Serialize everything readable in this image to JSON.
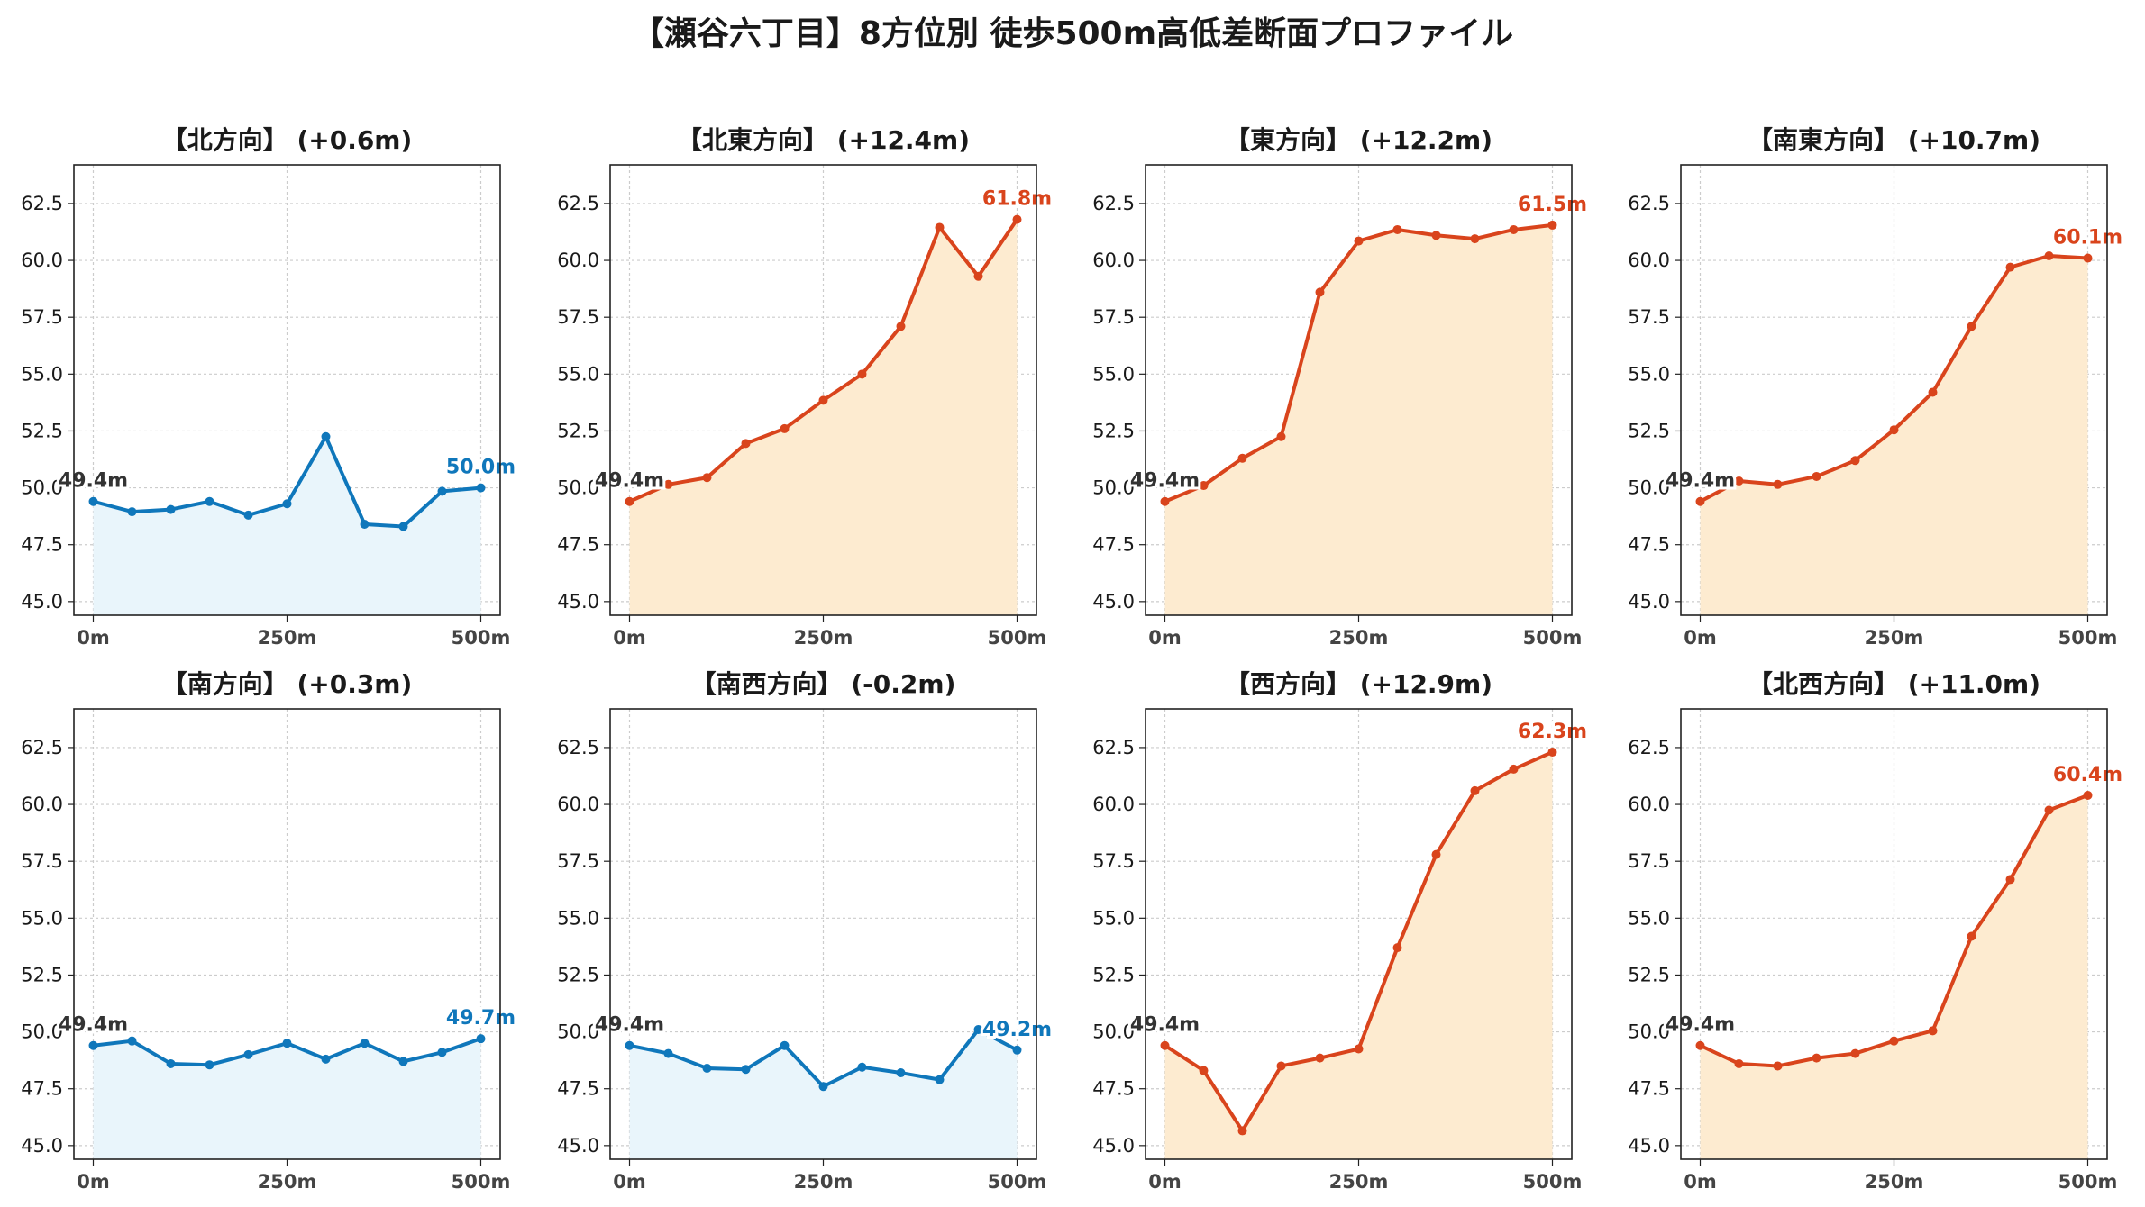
{
  "title": "【瀬谷六丁目】8方位別 徒歩500m高低差断面プロファイル",
  "colors": {
    "up_line": "#d9441c",
    "up_fill": "#fdebd0",
    "flat_line": "#0f77bb",
    "flat_fill": "#e9f5fb",
    "start_label": "#333333",
    "grid": "#cccccc"
  },
  "chart_data": [
    {
      "type": "area",
      "title": "【北方向】 (+0.6m)",
      "trend": "flat",
      "x": [
        0,
        50,
        100,
        150,
        200,
        250,
        300,
        350,
        400,
        450,
        500
      ],
      "values": [
        49.4,
        48.95,
        49.05,
        49.4,
        48.8,
        49.3,
        52.25,
        48.4,
        48.3,
        49.85,
        50.0
      ],
      "start_label": "49.4m",
      "end_label": "50.0m",
      "xticks": [
        "0m",
        "250m",
        "500m"
      ],
      "yticks": [
        "45.0",
        "47.5",
        "50.0",
        "52.5",
        "55.0",
        "57.5",
        "60.0",
        "62.5"
      ],
      "ylim": [
        44.4,
        64.2
      ],
      "xlim": [
        -25,
        525
      ],
      "grid": true
    },
    {
      "type": "area",
      "title": "【北東方向】 (+12.4m)",
      "trend": "up",
      "x": [
        0,
        50,
        100,
        150,
        200,
        250,
        300,
        350,
        400,
        450,
        500
      ],
      "values": [
        49.4,
        50.15,
        50.45,
        51.95,
        52.6,
        53.85,
        55.0,
        57.1,
        61.45,
        59.3,
        61.8
      ],
      "start_label": "49.4m",
      "end_label": "61.8m",
      "xticks": [
        "0m",
        "250m",
        "500m"
      ],
      "yticks": [
        "45.0",
        "47.5",
        "50.0",
        "52.5",
        "55.0",
        "57.5",
        "60.0",
        "62.5"
      ],
      "ylim": [
        44.4,
        64.2
      ],
      "xlim": [
        -25,
        525
      ],
      "grid": true
    },
    {
      "type": "area",
      "title": "【東方向】 (+12.2m)",
      "trend": "up",
      "x": [
        0,
        50,
        100,
        150,
        200,
        250,
        300,
        350,
        400,
        450,
        500
      ],
      "values": [
        49.4,
        50.1,
        51.3,
        52.25,
        58.6,
        60.85,
        61.35,
        61.1,
        60.95,
        61.35,
        61.55
      ],
      "start_label": "49.4m",
      "end_label": "61.5m",
      "xticks": [
        "0m",
        "250m",
        "500m"
      ],
      "yticks": [
        "45.0",
        "47.5",
        "50.0",
        "52.5",
        "55.0",
        "57.5",
        "60.0",
        "62.5"
      ],
      "ylim": [
        44.4,
        64.2
      ],
      "xlim": [
        -25,
        525
      ],
      "grid": true
    },
    {
      "type": "area",
      "title": "【南東方向】 (+10.7m)",
      "trend": "up",
      "x": [
        0,
        50,
        100,
        150,
        200,
        250,
        300,
        350,
        400,
        450,
        500
      ],
      "values": [
        49.4,
        50.3,
        50.15,
        50.5,
        51.2,
        52.55,
        54.2,
        57.1,
        59.7,
        60.2,
        60.1
      ],
      "start_label": "49.4m",
      "end_label": "60.1m",
      "xticks": [
        "0m",
        "250m",
        "500m"
      ],
      "yticks": [
        "45.0",
        "47.5",
        "50.0",
        "52.5",
        "55.0",
        "57.5",
        "60.0",
        "62.5"
      ],
      "ylim": [
        44.4,
        64.2
      ],
      "xlim": [
        -25,
        525
      ],
      "grid": true
    },
    {
      "type": "area",
      "title": "【南方向】 (+0.3m)",
      "trend": "flat",
      "x": [
        0,
        50,
        100,
        150,
        200,
        250,
        300,
        350,
        400,
        450,
        500
      ],
      "values": [
        49.4,
        49.6,
        48.6,
        48.55,
        49.0,
        49.5,
        48.8,
        49.5,
        48.7,
        49.1,
        49.7
      ],
      "start_label": "49.4m",
      "end_label": "49.7m",
      "xticks": [
        "0m",
        "250m",
        "500m"
      ],
      "yticks": [
        "45.0",
        "47.5",
        "50.0",
        "52.5",
        "55.0",
        "57.5",
        "60.0",
        "62.5"
      ],
      "ylim": [
        44.4,
        64.2
      ],
      "xlim": [
        -25,
        525
      ],
      "grid": true
    },
    {
      "type": "area",
      "title": "【南西方向】 (-0.2m)",
      "trend": "flat",
      "x": [
        0,
        50,
        100,
        150,
        200,
        250,
        300,
        350,
        400,
        450,
        500
      ],
      "values": [
        49.4,
        49.05,
        48.4,
        48.35,
        49.4,
        47.6,
        48.45,
        48.2,
        47.9,
        50.1,
        49.2
      ],
      "start_label": "49.4m",
      "end_label": "49.2m",
      "xticks": [
        "0m",
        "250m",
        "500m"
      ],
      "yticks": [
        "45.0",
        "47.5",
        "50.0",
        "52.5",
        "55.0",
        "57.5",
        "60.0",
        "62.5"
      ],
      "ylim": [
        44.4,
        64.2
      ],
      "xlim": [
        -25,
        525
      ],
      "grid": true
    },
    {
      "type": "area",
      "title": "【西方向】 (+12.9m)",
      "trend": "up",
      "x": [
        0,
        50,
        100,
        150,
        200,
        250,
        300,
        350,
        400,
        450,
        500
      ],
      "values": [
        49.4,
        48.3,
        45.65,
        48.5,
        48.85,
        49.25,
        53.7,
        57.8,
        60.6,
        61.55,
        62.3
      ],
      "start_label": "49.4m",
      "end_label": "62.3m",
      "xticks": [
        "0m",
        "250m",
        "500m"
      ],
      "yticks": [
        "45.0",
        "47.5",
        "50.0",
        "52.5",
        "55.0",
        "57.5",
        "60.0",
        "62.5"
      ],
      "ylim": [
        44.4,
        64.2
      ],
      "xlim": [
        -25,
        525
      ],
      "grid": true
    },
    {
      "type": "area",
      "title": "【北西方向】 (+11.0m)",
      "trend": "up",
      "x": [
        0,
        50,
        100,
        150,
        200,
        250,
        300,
        350,
        400,
        450,
        500
      ],
      "values": [
        49.4,
        48.6,
        48.5,
        48.85,
        49.05,
        49.6,
        50.05,
        54.2,
        56.7,
        59.75,
        60.4
      ],
      "start_label": "49.4m",
      "end_label": "60.4m",
      "xticks": [
        "0m",
        "250m",
        "500m"
      ],
      "yticks": [
        "45.0",
        "47.5",
        "50.0",
        "52.5",
        "55.0",
        "57.5",
        "60.0",
        "62.5"
      ],
      "ylim": [
        44.4,
        64.2
      ],
      "xlim": [
        -25,
        525
      ],
      "grid": true
    }
  ]
}
